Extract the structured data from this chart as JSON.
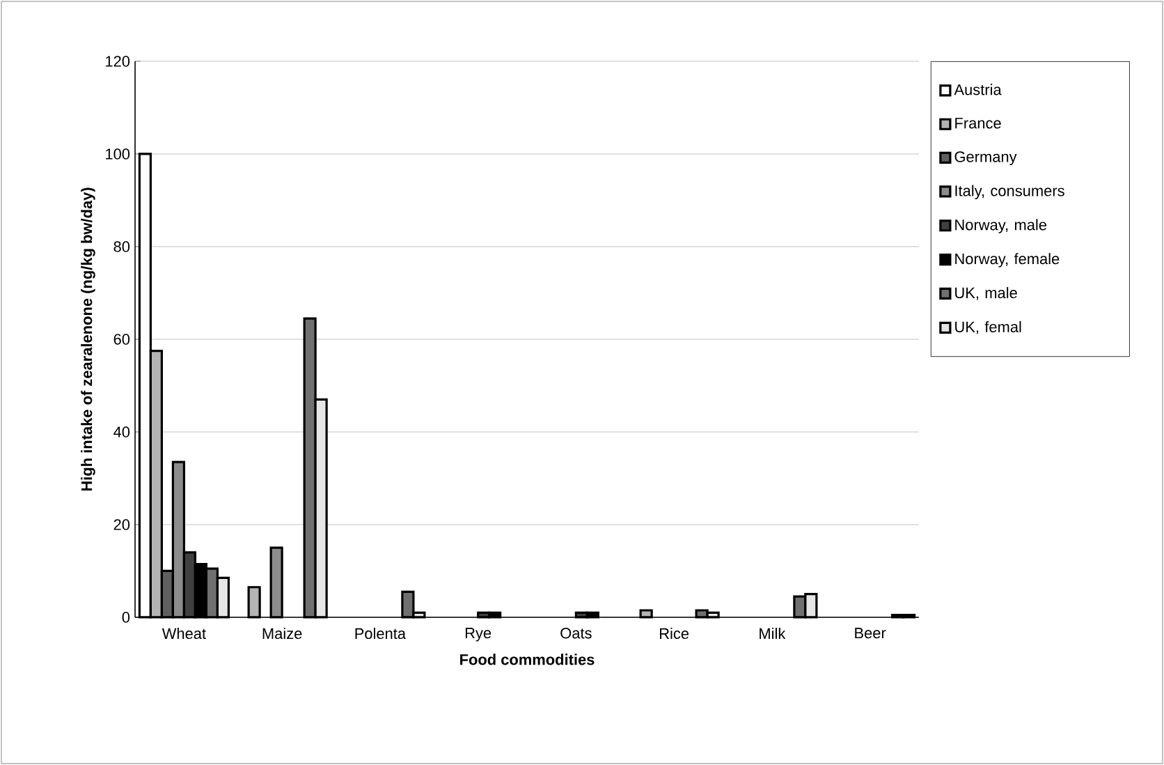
{
  "chart_data": {
    "type": "bar",
    "xlabel": "Food commodities",
    "ylabel": "High intake of zearalenone (ng/kg bw/day)",
    "categories": [
      "Wheat",
      "Maize",
      "Polenta",
      "Rye",
      "Oats",
      "Rice",
      "Milk",
      "Beer"
    ],
    "series": [
      {
        "name": "Austria",
        "color": "#ffffff",
        "values": [
          100,
          null,
          null,
          null,
          null,
          null,
          null,
          null
        ]
      },
      {
        "name": "France",
        "color": "#b4b4b4",
        "values": [
          57.5,
          6.5,
          null,
          null,
          null,
          1.5,
          null,
          null
        ]
      },
      {
        "name": "Germany",
        "color": "#606060",
        "values": [
          10,
          null,
          null,
          null,
          null,
          null,
          null,
          null
        ]
      },
      {
        "name": "Italy, consumers",
        "color": "#8c8c8c",
        "values": [
          33.5,
          15,
          null,
          null,
          null,
          null,
          null,
          null
        ]
      },
      {
        "name": "Norway, male",
        "color": "#404040",
        "values": [
          14,
          null,
          null,
          1,
          1,
          null,
          null,
          null
        ]
      },
      {
        "name": "Norway, female",
        "color": "#000000",
        "values": [
          11.5,
          null,
          null,
          1,
          1,
          null,
          null,
          null
        ]
      },
      {
        "name": "UK, male",
        "color": "#707070",
        "values": [
          10.5,
          64.5,
          5.5,
          null,
          null,
          1.5,
          4.5,
          0.5
        ]
      },
      {
        "name": "UK, femal",
        "color": "#e6e6e6",
        "values": [
          8.5,
          47,
          1,
          null,
          null,
          1,
          5,
          0.5
        ]
      }
    ],
    "ylim": [
      0,
      120
    ],
    "yticks": [
      0,
      20,
      40,
      60,
      80,
      100,
      120
    ],
    "grid": "y",
    "legend": "right"
  }
}
